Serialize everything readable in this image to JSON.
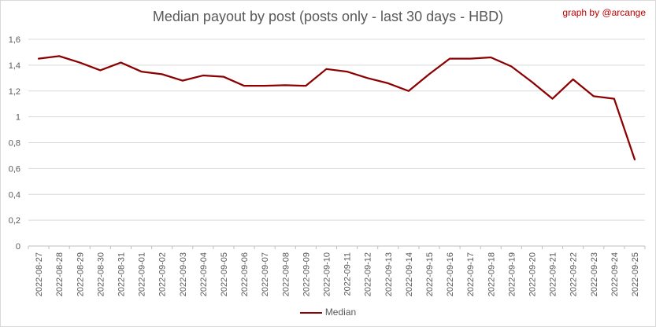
{
  "credit": "graph by @arcange",
  "chart_data": {
    "type": "line",
    "title": "Median payout by post (posts only - last 30 days - HBD)",
    "xlabel": "",
    "ylabel": "",
    "ylim": [
      0,
      1.6
    ],
    "yticks": [
      "0",
      "0,2",
      "0,4",
      "0,6",
      "0,8",
      "1",
      "1,2",
      "1,4",
      "1,6"
    ],
    "grid": true,
    "legend_position": "bottom",
    "color": "#8b0000",
    "categories": [
      "2022-08-27",
      "2022-08-28",
      "2022-08-29",
      "2022-08-30",
      "2022-08-31",
      "2022-09-01",
      "2022-09-02",
      "2022-09-03",
      "2022-09-04",
      "2022-09-05",
      "2022-09-06",
      "2022-09-07",
      "2022-09-08",
      "2022-09-09",
      "2022-09-10",
      "2022-09-11",
      "2022-09-12",
      "2022-09-13",
      "2022-09-14",
      "2022-09-15",
      "2022-09-16",
      "2022-09-17",
      "2022-09-18",
      "2022-09-19",
      "2022-09-20",
      "2022-09-21",
      "2022-09-22",
      "2022-09-23",
      "2022-09-24",
      "2022-09-25"
    ],
    "series": [
      {
        "name": "Median",
        "values": [
          1.45,
          1.47,
          1.42,
          1.36,
          1.42,
          1.35,
          1.33,
          1.28,
          1.32,
          1.31,
          1.24,
          1.24,
          1.245,
          1.24,
          1.37,
          1.35,
          1.3,
          1.26,
          1.2,
          1.33,
          1.45,
          1.45,
          1.46,
          1.39,
          1.27,
          1.14,
          1.29,
          1.16,
          1.14,
          0.67
        ]
      }
    ]
  }
}
